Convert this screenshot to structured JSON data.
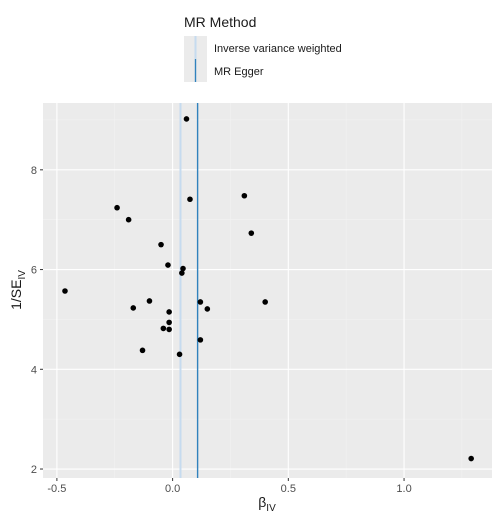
{
  "chart_data": {
    "type": "scatter",
    "title": "",
    "xlabel": "β",
    "xlabel_sub": "IV",
    "ylabel": "1/SE",
    "ylabel_sub": "IV",
    "xlim": [
      -0.56,
      1.38
    ],
    "ylim": [
      1.82,
      9.34
    ],
    "x_ticks": [
      -0.5,
      0.0,
      0.5,
      1.0
    ],
    "x_tick_labels": [
      "-0.5",
      "0.0",
      "0.5",
      "1.0"
    ],
    "y_ticks": [
      2,
      4,
      6,
      8
    ],
    "y_tick_labels": [
      "2",
      "4",
      "6",
      "8"
    ],
    "grid": true,
    "legend": {
      "title": "MR Method",
      "placement": "top",
      "entries": [
        {
          "label": "Inverse variance weighted",
          "color": "#c6dbef"
        },
        {
          "label": "MR Egger",
          "color": "#3182bd"
        }
      ]
    },
    "lines": [
      {
        "name": "Inverse variance weighted",
        "x": 0.034,
        "color": "#c6dbef"
      },
      {
        "name": "MR Egger",
        "x": 0.108,
        "color": "#3182bd"
      }
    ],
    "points": [
      {
        "x": 0.06,
        "y": 9.02
      },
      {
        "x": -0.24,
        "y": 7.24
      },
      {
        "x": -0.19,
        "y": 7.0
      },
      {
        "x": 0.075,
        "y": 7.41
      },
      {
        "x": 0.31,
        "y": 7.48
      },
      {
        "x": 0.34,
        "y": 6.73
      },
      {
        "x": -0.05,
        "y": 6.5
      },
      {
        "x": -0.02,
        "y": 6.09
      },
      {
        "x": 0.045,
        "y": 6.02
      },
      {
        "x": 0.04,
        "y": 5.93
      },
      {
        "x": -0.465,
        "y": 5.57
      },
      {
        "x": -0.1,
        "y": 5.37
      },
      {
        "x": 0.12,
        "y": 5.35
      },
      {
        "x": 0.4,
        "y": 5.35
      },
      {
        "x": -0.17,
        "y": 5.23
      },
      {
        "x": 0.15,
        "y": 5.21
      },
      {
        "x": -0.015,
        "y": 5.15
      },
      {
        "x": -0.04,
        "y": 4.82
      },
      {
        "x": -0.015,
        "y": 4.94
      },
      {
        "x": -0.015,
        "y": 4.8
      },
      {
        "x": 0.12,
        "y": 4.59
      },
      {
        "x": -0.13,
        "y": 4.38
      },
      {
        "x": 0.03,
        "y": 4.3
      },
      {
        "x": 1.29,
        "y": 2.21
      }
    ],
    "colors": {
      "panel": "#ebebeb",
      "grid_major": "#ffffff",
      "point": "#000000"
    }
  }
}
